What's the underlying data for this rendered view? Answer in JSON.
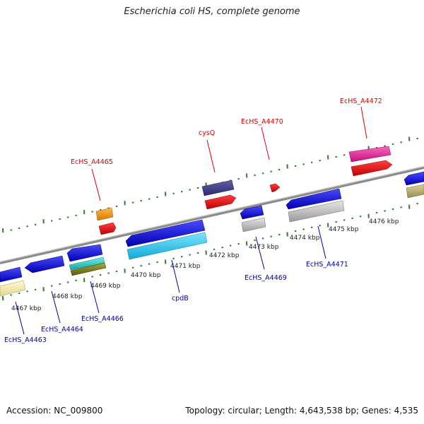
{
  "title": "Escherichia coli HS, complete genome",
  "footer": {
    "accession": "Accession: NC_009800",
    "summary": "Topology: circular; Length: 4,643,538 bp; Genes: 4,535"
  },
  "scale_labels": [
    "4467 kbp",
    "4468 kbp",
    "4469 kbp",
    "4470 kbp",
    "4471 kbp",
    "4472 kbp",
    "4473 kbp",
    "4474 kbp",
    "4475 kbp",
    "4476 kbp"
  ],
  "forward_genes": [
    {
      "label": "EcHS_A4465",
      "color": "#e00000"
    },
    {
      "label": "cysQ",
      "color": "#e00000"
    },
    {
      "label": "EcHS_A4470",
      "color": "#e00000"
    },
    {
      "label": "EcHS_A4472",
      "color": "#e00000"
    }
  ],
  "reverse_genes": [
    {
      "label": "EcHS_A4463",
      "color": "#0000aa"
    },
    {
      "label": "EcHS_A4464",
      "color": "#0000aa"
    },
    {
      "label": "EcHS_A4466",
      "color": "#0000aa"
    },
    {
      "label": "cpdB",
      "color": "#0000aa"
    },
    {
      "label": "EcHS_A4469",
      "color": "#0000aa"
    },
    {
      "label": "EcHS_A4471",
      "color": "#0000aa"
    }
  ],
  "colors": {
    "backbone": "#8a8a8a",
    "tick": "#2e7d32",
    "gene_blue": "#1010e0",
    "cyan": "#22c4ee",
    "red": "#f00000",
    "orange": "#f59a10",
    "navy": "#3f3f8a",
    "gray": "#bdbdbd",
    "magenta": "#ee22a0",
    "yellow": "#f0eaa0",
    "olive": "#8a8a20",
    "teal": "#20c8c0",
    "khaki": "#b8b070"
  }
}
